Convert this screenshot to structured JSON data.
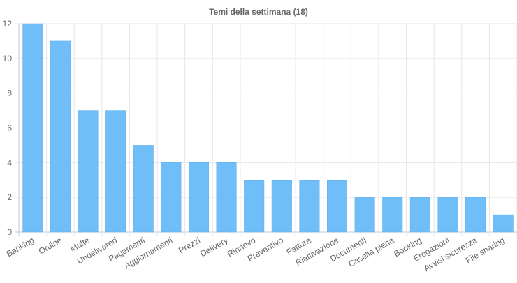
{
  "chart_data": {
    "type": "bar",
    "title": "Temi della settimana (18)",
    "xlabel": "",
    "ylabel": "",
    "categories": [
      "Banking",
      "Ordine",
      "Multe",
      "Undelivered",
      "Pagamenti",
      "Aggiornamenti",
      "Prezzi",
      "Delivery",
      "Rinnovo",
      "Preventivo",
      "Fattura",
      "Riattivazione",
      "Documenti",
      "Casella piena",
      "Booking",
      "Erogazioni",
      "Avvisi sicurezza",
      "File sharing"
    ],
    "values": [
      12,
      11,
      7,
      7,
      5,
      4,
      4,
      4,
      3,
      3,
      3,
      3,
      2,
      2,
      2,
      2,
      2,
      1
    ],
    "ylim": [
      0,
      12
    ],
    "yticks": [
      0,
      2,
      4,
      6,
      8,
      10,
      12
    ],
    "grid": true,
    "legend": "none",
    "colors": {
      "bar": "#6fbef8",
      "bar_border": "#5aaef0",
      "grid": "#e6e6e6",
      "text": "#666666"
    }
  }
}
